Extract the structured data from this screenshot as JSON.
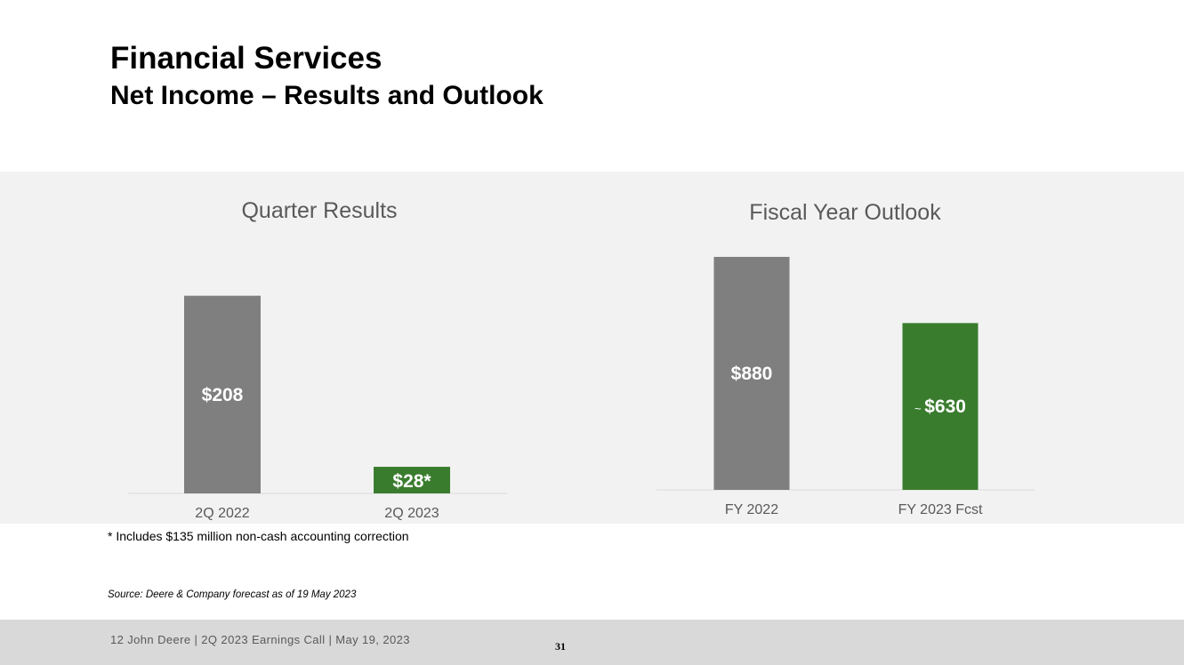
{
  "header": {
    "title": "Financial Services",
    "subtitle": "Net Income – Results and Outlook"
  },
  "colors": {
    "gray_bar": "#7f7f7f",
    "green_bar": "#3a7c2e",
    "panel_bg": "#f2f2f2",
    "axis_line": "#d9d9d9",
    "label_text": "#595959"
  },
  "chart_data": [
    {
      "type": "bar",
      "title": "Quarter Results",
      "categories": [
        "2Q 2022",
        "2Q 2023"
      ],
      "values": [
        208,
        28
      ],
      "data_labels": [
        "$208",
        "$28*"
      ],
      "bar_colors": [
        "#7f7f7f",
        "#3a7c2e"
      ],
      "ylim": [
        0,
        290
      ],
      "grid": false,
      "legend": "none"
    },
    {
      "type": "bar",
      "title": "Fiscal Year Outlook",
      "categories": [
        "FY 2022",
        "FY 2023 Fcst"
      ],
      "values": [
        880,
        630
      ],
      "data_labels": [
        "$880",
        "$630"
      ],
      "label_prefix": [
        "",
        "~"
      ],
      "bar_colors": [
        "#7f7f7f",
        "#3a7c2e"
      ],
      "ylim": [
        0,
        900
      ],
      "grid": false,
      "legend": "none"
    }
  ],
  "notes": {
    "footnote": "* Includes $135 million non-cash accounting correction",
    "source": "Source: Deere & Company forecast as of 19 May 2023"
  },
  "footer": {
    "text": "12   John Deere | 2Q 2023 Earnings Call | May 19, 2023",
    "page_number": "31"
  }
}
